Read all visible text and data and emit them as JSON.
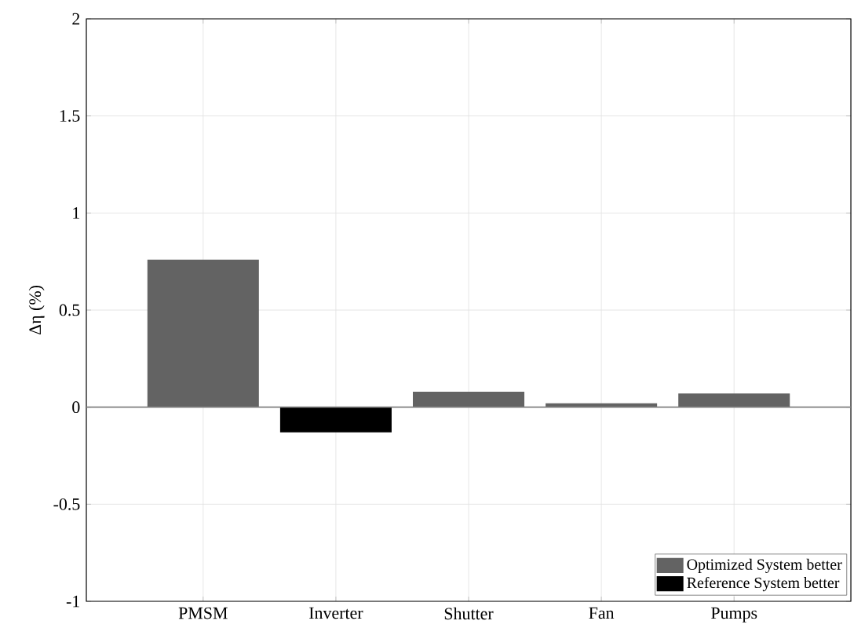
{
  "chart_data": {
    "type": "bar",
    "ylabel": "Δη (%)",
    "categories": [
      "PMSM",
      "Inverter",
      "Shutter",
      "Fan",
      "Pumps"
    ],
    "series": [
      {
        "name": "Optimized System better",
        "color": "#636363",
        "values": [
          0.76,
          null,
          0.08,
          0.02,
          0.07
        ]
      },
      {
        "name": "Reference System better",
        "color": "#000000",
        "values": [
          null,
          -0.13,
          null,
          null,
          null
        ]
      }
    ],
    "ylim": [
      -1,
      2
    ],
    "yticks": [
      -1,
      -0.5,
      0,
      0.5,
      1,
      1.5,
      2
    ],
    "grid": true,
    "legend": "bottom right",
    "ref_lines": [
      {
        "axis": "y",
        "value": 0,
        "color": "#808080"
      }
    ]
  }
}
